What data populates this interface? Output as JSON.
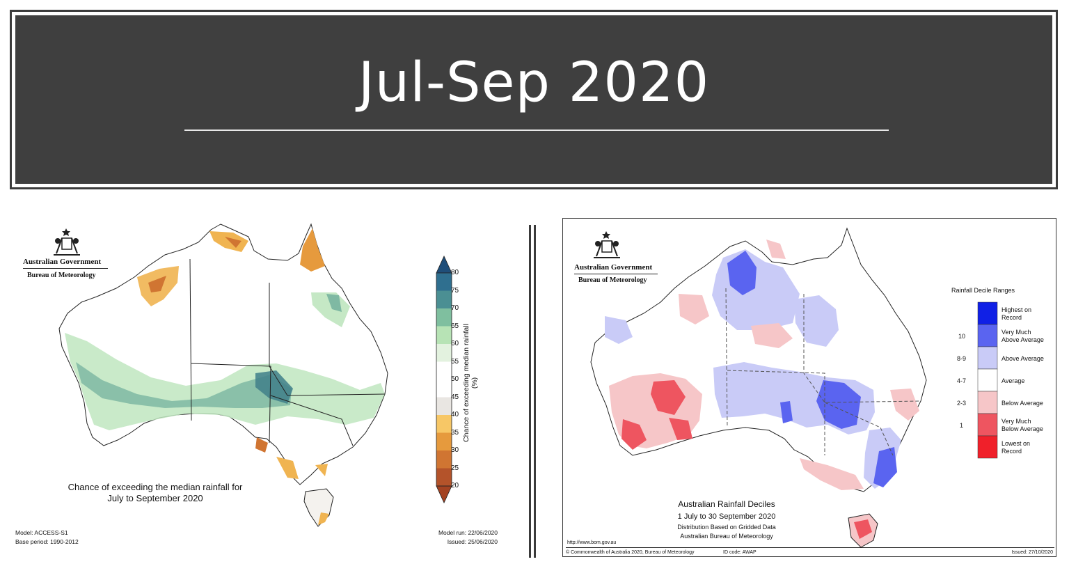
{
  "header": {
    "title": "Jul-Sep 2020"
  },
  "left_map": {
    "agency_line1": "Australian Government",
    "agency_line2": "Bureau of Meteorology",
    "caption_line1": "Chance of exceeding the median rainfall for",
    "caption_line2": "July to September 2020",
    "model": "Model: ACCESS-S1",
    "base_period": "Base period: 1990-2012",
    "model_run": "Model run: 22/06/2020",
    "issued": "Issued: 25/06/2020",
    "colorbar_label": "Chance of exceeding median rainfall (%)",
    "colorbar_ticks": [
      "80",
      "75",
      "70",
      "65",
      "60",
      "55",
      "50",
      "45",
      "40",
      "35",
      "30",
      "25",
      "20"
    ],
    "colorbar_colors": [
      "#1f4e79",
      "#2f6f8f",
      "#4b8f93",
      "#7fbf9f",
      "#b7e3b5",
      "#e3f2df",
      "#ffffff",
      "#e9e6e2",
      "#f7c766",
      "#e69a3d",
      "#d07532",
      "#b4532a"
    ]
  },
  "right_map": {
    "agency_line1": "Australian Government",
    "agency_line2": "Bureau of Meteorology",
    "legend_title": "Rainfall Decile Ranges",
    "legend": [
      {
        "decile": "",
        "label_line1": "Highest on",
        "label_line2": "Record",
        "color": "#1020e6"
      },
      {
        "decile": "10",
        "label_line1": "Very Much",
        "label_line2": "Above Average",
        "color": "#5a64f0"
      },
      {
        "decile": "8-9",
        "label_line1": "Above Average",
        "label_line2": "",
        "color": "#c9cbf7"
      },
      {
        "decile": "4-7",
        "label_line1": "Average",
        "label_line2": "",
        "color": "#ffffff"
      },
      {
        "decile": "2-3",
        "label_line1": "Below Average",
        "label_line2": "",
        "color": "#f6c6c8"
      },
      {
        "decile": "1",
        "label_line1": "Very Much",
        "label_line2": "Below Average",
        "color": "#ee5560"
      },
      {
        "decile": "",
        "label_line1": "Lowest on",
        "label_line2": "Record",
        "color": "#f0202a"
      }
    ],
    "caption_title": "Australian Rainfall Deciles",
    "caption_period": "1 July to 30 September 2020",
    "caption_line3": "Distribution Based on Gridded Data",
    "caption_line4": "Australian Bureau of Meteorology",
    "url": "http://www.bom.gov.au",
    "copyright": "© Commonwealth of Australia 2020, Bureau of Meteorology",
    "id_code": "ID code: AWAP",
    "issued": "Issued: 27/10/2020"
  }
}
